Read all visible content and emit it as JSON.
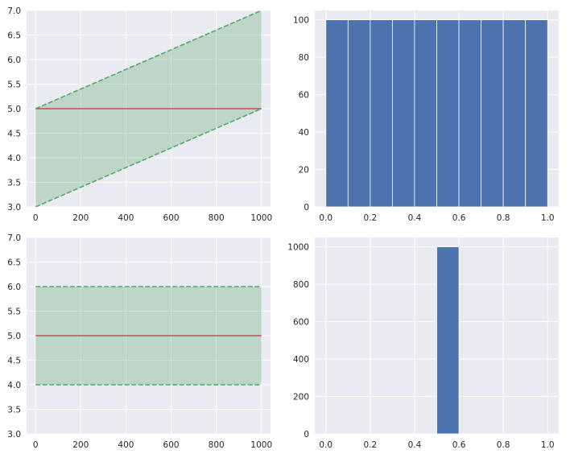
{
  "colors": {
    "plot_bg": "#eaeaf2",
    "grid": "#ffffff",
    "mean_line": "#c44e52",
    "band_line": "#55a868",
    "band_fill": "#55a868",
    "bar": "#4c72b0"
  },
  "chart_data": [
    {
      "type": "line",
      "x": [
        0,
        1000
      ],
      "series": [
        {
          "values": [
            5,
            5
          ],
          "style": "solid",
          "color": "#c44e52"
        },
        {
          "values": [
            5,
            7
          ],
          "style": "dashed",
          "color": "#55a868"
        },
        {
          "values": [
            3,
            5
          ],
          "style": "dashed",
          "color": "#55a868"
        }
      ],
      "fill_between": {
        "x": [
          0,
          1000
        ],
        "lower": [
          3,
          5
        ],
        "upper": [
          5,
          7
        ],
        "color": "#55a868",
        "alpha": 0.3
      },
      "xlim": [
        -40,
        1040
      ],
      "ylim": [
        3.0,
        7.0
      ],
      "xticks": [
        0,
        200,
        400,
        600,
        800,
        1000
      ],
      "xtick_labels": [
        "0",
        "200",
        "400",
        "600",
        "800",
        "1000"
      ],
      "yticks": [
        3.0,
        3.5,
        4.0,
        4.5,
        5.0,
        5.5,
        6.0,
        6.5,
        7.0
      ],
      "ytick_labels": [
        "3.0",
        "3.5",
        "4.0",
        "4.5",
        "5.0",
        "5.5",
        "6.0",
        "6.5",
        "7.0"
      ],
      "grid": true,
      "title": "",
      "xlabel": "",
      "ylabel": ""
    },
    {
      "type": "bar",
      "bin_edges": [
        0.0,
        0.1,
        0.2,
        0.3,
        0.4,
        0.5,
        0.6,
        0.7,
        0.8,
        0.9,
        1.0
      ],
      "values": [
        100,
        100,
        100,
        100,
        100,
        100,
        100,
        100,
        100,
        100
      ],
      "color": "#4c72b0",
      "xlim": [
        -0.05,
        1.05
      ],
      "ylim": [
        0,
        105
      ],
      "xticks": [
        0.0,
        0.2,
        0.4,
        0.6,
        0.8,
        1.0
      ],
      "xtick_labels": [
        "0.0",
        "0.2",
        "0.4",
        "0.6",
        "0.8",
        "1.0"
      ],
      "yticks": [
        0,
        20,
        40,
        60,
        80,
        100
      ],
      "ytick_labels": [
        "0",
        "20",
        "40",
        "60",
        "80",
        "100"
      ],
      "grid": true,
      "title": "",
      "xlabel": "",
      "ylabel": ""
    },
    {
      "type": "line",
      "x": [
        0,
        1000
      ],
      "series": [
        {
          "values": [
            5,
            5
          ],
          "style": "solid",
          "color": "#c44e52"
        },
        {
          "values": [
            6,
            6
          ],
          "style": "dashed",
          "color": "#55a868"
        },
        {
          "values": [
            4,
            4
          ],
          "style": "dashed",
          "color": "#55a868"
        }
      ],
      "fill_between": {
        "x": [
          0,
          1000
        ],
        "lower": [
          4,
          4
        ],
        "upper": [
          6,
          6
        ],
        "color": "#55a868",
        "alpha": 0.3
      },
      "xlim": [
        -40,
        1040
      ],
      "ylim": [
        3.0,
        7.0
      ],
      "xticks": [
        0,
        200,
        400,
        600,
        800,
        1000
      ],
      "xtick_labels": [
        "0",
        "200",
        "400",
        "600",
        "800",
        "1000"
      ],
      "yticks": [
        3.0,
        3.5,
        4.0,
        4.5,
        5.0,
        5.5,
        6.0,
        6.5,
        7.0
      ],
      "ytick_labels": [
        "3.0",
        "3.5",
        "4.0",
        "4.5",
        "5.0",
        "5.5",
        "6.0",
        "6.5",
        "7.0"
      ],
      "grid": true,
      "title": "",
      "xlabel": "",
      "ylabel": ""
    },
    {
      "type": "bar",
      "bin_edges": [
        0.0,
        0.1,
        0.2,
        0.3,
        0.4,
        0.5,
        0.6,
        0.7,
        0.8,
        0.9,
        1.0
      ],
      "values": [
        0,
        0,
        0,
        0,
        0,
        1000,
        0,
        0,
        0,
        0
      ],
      "color": "#4c72b0",
      "xlim": [
        -0.05,
        1.05
      ],
      "ylim": [
        0,
        1050
      ],
      "xticks": [
        0.0,
        0.2,
        0.4,
        0.6,
        0.8,
        1.0
      ],
      "xtick_labels": [
        "0.0",
        "0.2",
        "0.4",
        "0.6",
        "0.8",
        "1.0"
      ],
      "yticks": [
        0,
        200,
        400,
        600,
        800,
        1000
      ],
      "ytick_labels": [
        "0",
        "200",
        "400",
        "600",
        "800",
        "1000"
      ],
      "grid": true,
      "title": "",
      "xlabel": "",
      "ylabel": ""
    }
  ]
}
